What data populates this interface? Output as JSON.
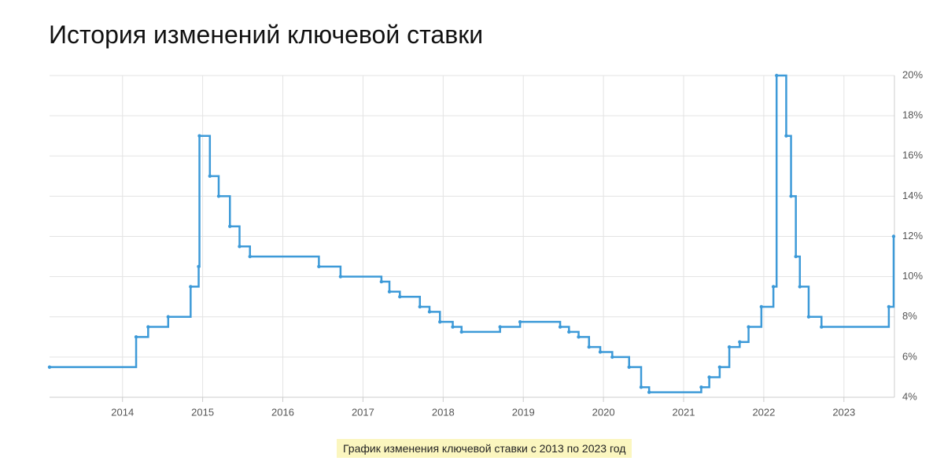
{
  "title": "История изменений ключевой ставки",
  "caption": "График изменения ключевой ставки с 2013 по 2023 год",
  "chart_data": {
    "type": "line",
    "line_shape": "step",
    "color": "#3d9ad8",
    "grid": true,
    "y_axis_side": "right",
    "x": [
      2013.09,
      2014.17,
      2014.32,
      2014.57,
      2014.85,
      2014.95,
      2014.96,
      2015.09,
      2015.2,
      2015.34,
      2015.46,
      2015.59,
      2016.45,
      2016.72,
      2017.23,
      2017.33,
      2017.46,
      2017.71,
      2017.83,
      2017.96,
      2018.12,
      2018.23,
      2018.71,
      2018.96,
      2019.46,
      2019.57,
      2019.69,
      2019.82,
      2019.96,
      2020.11,
      2020.32,
      2020.47,
      2020.57,
      2021.22,
      2021.32,
      2021.45,
      2021.57,
      2021.7,
      2021.81,
      2021.97,
      2022.12,
      2022.16,
      2022.28,
      2022.34,
      2022.4,
      2022.45,
      2022.56,
      2022.72,
      2023.56,
      2023.62
    ],
    "values": [
      5.5,
      7,
      7.5,
      8,
      9.5,
      10.5,
      17,
      15,
      14,
      12.5,
      11.5,
      11,
      10.5,
      10,
      9.75,
      9.25,
      9,
      8.5,
      8.25,
      7.75,
      7.5,
      7.25,
      7.5,
      7.75,
      7.5,
      7.25,
      7,
      6.5,
      6.25,
      6,
      5.5,
      4.5,
      4.25,
      4.5,
      5,
      5.5,
      6.5,
      6.75,
      7.5,
      8.5,
      9.5,
      20,
      17,
      14,
      11,
      9.5,
      8,
      7.5,
      8.5,
      12
    ],
    "xlim": [
      2013.09,
      2023.63
    ],
    "xticks": [
      2014,
      2015,
      2016,
      2017,
      2018,
      2019,
      2020,
      2021,
      2022,
      2023
    ],
    "ylim": [
      4,
      20
    ],
    "yticks": [
      {
        "value": 4,
        "label": "4%"
      },
      {
        "value": 6,
        "label": "6%"
      },
      {
        "value": 8,
        "label": "8%"
      },
      {
        "value": 10,
        "label": "10%"
      },
      {
        "value": 12,
        "label": "12%"
      },
      {
        "value": 14,
        "label": "14%"
      },
      {
        "value": 16,
        "label": "16%"
      },
      {
        "value": 18,
        "label": "18%"
      },
      {
        "value": 20,
        "label": "20%"
      }
    ]
  }
}
